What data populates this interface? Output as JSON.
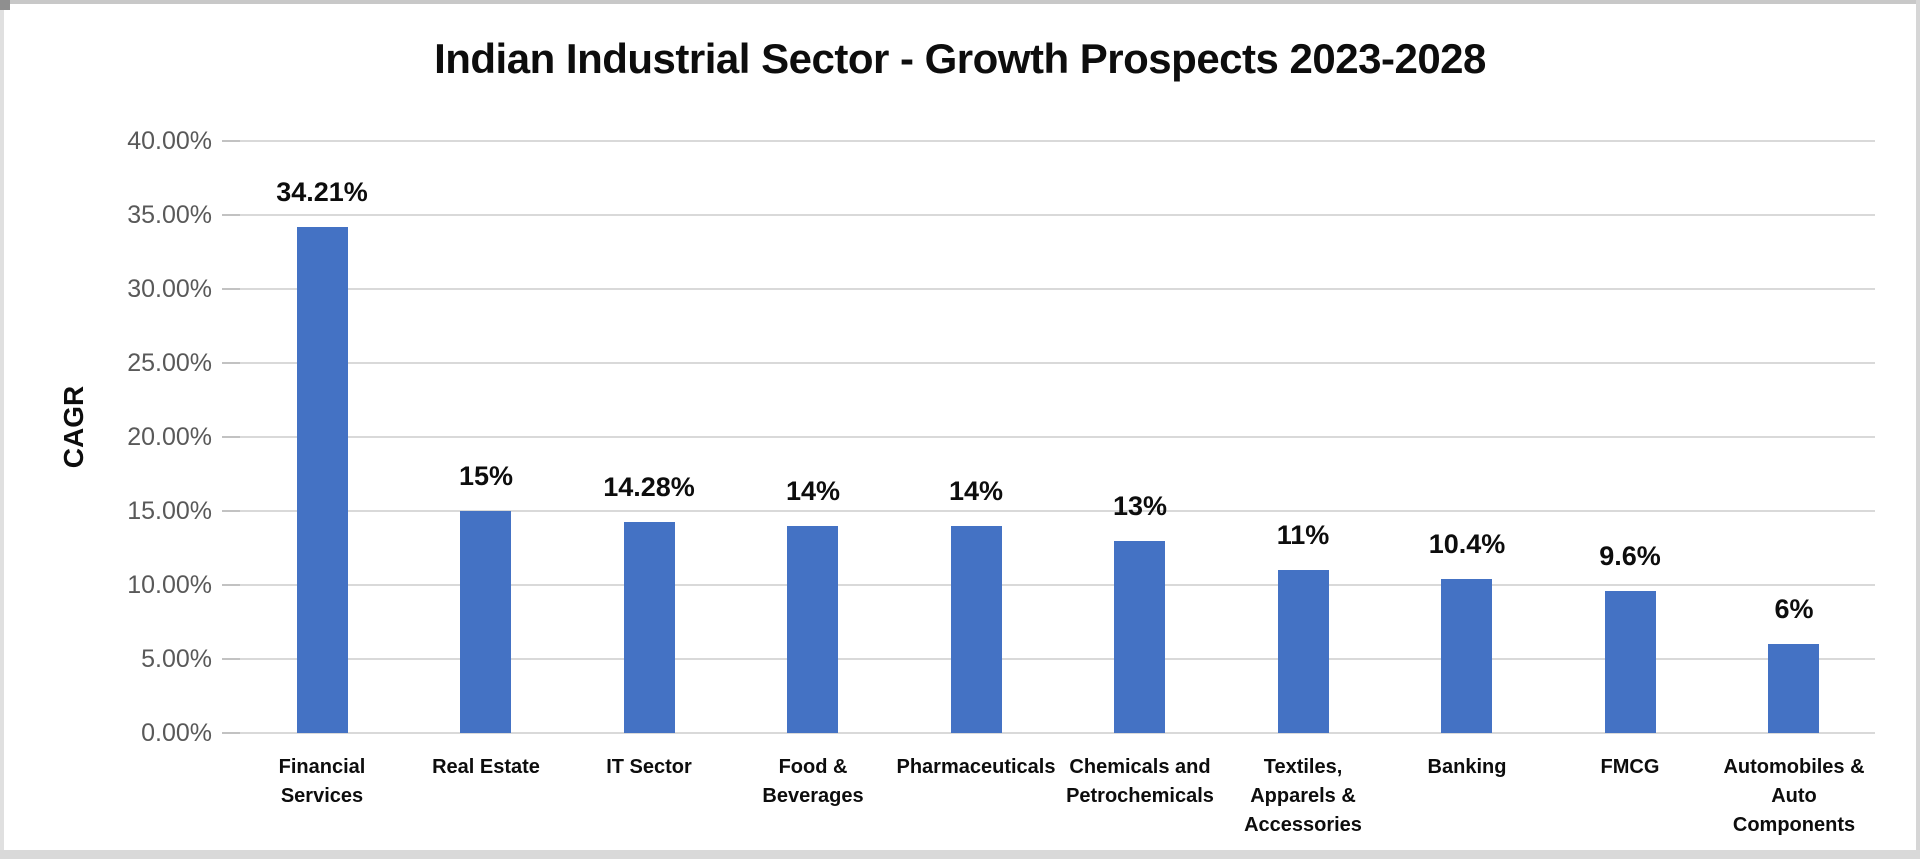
{
  "chart_data": {
    "type": "bar",
    "title": "Indian Industrial Sector - Growth Prospects 2023-2028",
    "xlabel": "",
    "ylabel": "CAGR",
    "categories": [
      "Financial Services",
      "Real Estate",
      "IT Sector",
      "Food & Beverages",
      "Pharmaceuticals",
      "Chemicals and Petrochemicals",
      "Textiles, Apparels & Accessories",
      "Banking",
      "FMCG",
      "Automobiles & Auto Components"
    ],
    "category_label_lines": [
      [
        "Financial",
        "Services"
      ],
      [
        "Real Estate"
      ],
      [
        "IT Sector"
      ],
      [
        "Food &",
        "Beverages"
      ],
      [
        "Pharmaceuticals"
      ],
      [
        "Chemicals and",
        "Petrochemicals"
      ],
      [
        "Textiles,",
        "Apparels &",
        "Accessories"
      ],
      [
        "Banking"
      ],
      [
        "FMCG"
      ],
      [
        "Automobiles &",
        "Auto",
        "Components"
      ]
    ],
    "values": [
      34.21,
      15,
      14.28,
      14,
      14,
      13,
      11,
      10.4,
      9.6,
      6
    ],
    "data_labels": [
      "34.21%",
      "15%",
      "14.28%",
      "14%",
      "14%",
      "13%",
      "11%",
      "10.4%",
      "9.6%",
      "6%"
    ],
    "y_tick_labels": [
      "40.00%",
      "35.00%",
      "30.00%",
      "25.00%",
      "20.00%",
      "15.00%",
      "10.00%",
      "5.00%",
      "0.00%"
    ],
    "y_tick_values": [
      40,
      35,
      30,
      25,
      20,
      15,
      10,
      5,
      0
    ],
    "ylim": [
      0,
      40
    ],
    "grid": true,
    "legend": "none",
    "colors": {
      "bar": "#4472C4",
      "gridline": "#D9D9D9",
      "tick_mark": "#C2C2C2",
      "axis_text": "#595959",
      "label_text": "#0d0d0d",
      "title_text": "#0d0d0d",
      "background": "#FFFFFF",
      "frame": "#C9C9C9"
    }
  }
}
